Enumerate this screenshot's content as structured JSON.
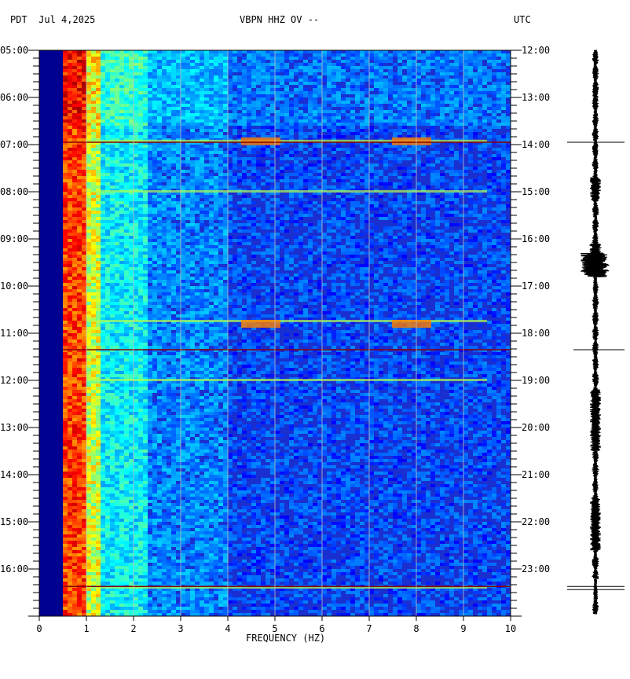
{
  "header": {
    "left": "PDT  Jul 4,2025",
    "center": "VBPN HHZ OV --",
    "right": "UTC"
  },
  "chart_data": {
    "type": "heatmap",
    "title": "VBPN HHZ OV --",
    "date": "Jul 4,2025",
    "xlabel": "FREQUENCY (HZ)",
    "xlim": [
      0,
      10
    ],
    "x_ticks": [
      "0",
      "1",
      "2",
      "3",
      "4",
      "5",
      "6",
      "7",
      "8",
      "9",
      "10"
    ],
    "y_left_timezone": "PDT",
    "y_right_timezone": "UTC",
    "y_left_ticks": [
      "05:00",
      "06:00",
      "07:00",
      "08:00",
      "09:00",
      "10:00",
      "11:00",
      "12:00",
      "13:00",
      "14:00",
      "15:00",
      "16:00"
    ],
    "y_right_ticks": [
      "12:00",
      "13:00",
      "14:00",
      "15:00",
      "16:00",
      "17:00",
      "18:00",
      "19:00",
      "20:00",
      "21:00",
      "22:00",
      "23:00"
    ],
    "grid": true,
    "colormap": [
      "#00008b",
      "#0000ff",
      "#0080ff",
      "#00ffff",
      "#80ff80",
      "#ffff00",
      "#ff8000",
      "#ff0000",
      "#800000"
    ],
    "background_color": "#1a2fd0",
    "low_freq_band_color": "#000090",
    "events_hours_since_start": [
      1.93,
      3.0,
      5.75,
      7.0,
      11.4
    ],
    "gap_lines_hours_since_start": [
      1.95,
      6.35,
      11.37
    ],
    "seismogram_color": "#000000"
  }
}
